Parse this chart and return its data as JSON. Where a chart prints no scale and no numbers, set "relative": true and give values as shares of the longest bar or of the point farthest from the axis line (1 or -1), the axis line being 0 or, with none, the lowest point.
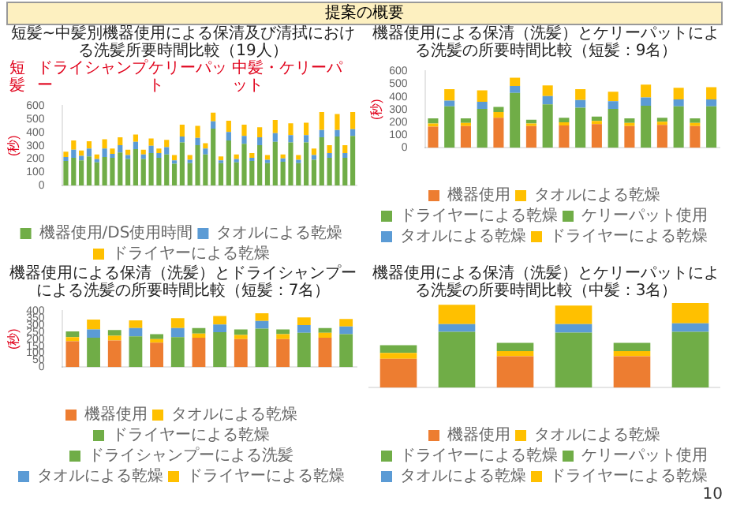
{
  "chart_data": [
    {
      "type": "bar",
      "title": "短髪~中髪別機器使用による保清及び清拭における洗髪所要時間比較（19人）",
      "ylabel": "(秒)",
      "annotations": [
        "提案の概要",
        "短髪",
        "ドライシャンプー",
        "ケリーパット",
        "中髪・ケリーパット"
      ],
      "stacked": true,
      "legend": "bottom",
      "ylim": [
        0,
        600
      ],
      "yticks": [
        0,
        100,
        200,
        300,
        400,
        500,
        600
      ],
      "categories": [
        null,
        null,
        null,
        null,
        null,
        null,
        null,
        null,
        null,
        null,
        null,
        null,
        null,
        null,
        null,
        null,
        null,
        null,
        null,
        null,
        null,
        null,
        null,
        null,
        null,
        null,
        null,
        null,
        null,
        null,
        null,
        null,
        null,
        null,
        null,
        null,
        null,
        null
      ],
      "series": [
        {
          "name": "機器使用/DS使用時間",
          "color": "#70ad47",
          "values": [
            185,
            210,
            190,
            220,
            175,
            215,
            210,
            250,
            200,
            275,
            200,
            245,
            210,
            235,
            165,
            325,
            170,
            305,
            235,
            430,
            170,
            340,
            175,
            315,
            185,
            305,
            170,
            330,
            180,
            325,
            170,
            325,
            195,
            365,
            210,
            370,
            210,
            375
          ]
        },
        {
          "name": "タオルによる乾燥",
          "color": "#5b9bd5",
          "values": [
            30,
            60,
            35,
            60,
            25,
            65,
            30,
            55,
            30,
            55,
            35,
            55,
            35,
            55,
            25,
            45,
            25,
            55,
            45,
            55,
            20,
            65,
            25,
            60,
            25,
            60,
            25,
            65,
            25,
            55,
            25,
            55,
            35,
            55,
            35,
            50,
            35,
            50
          ]
        },
        {
          "name": "ドライヤーによる乾燥",
          "color": "#ffc000",
          "values": [
            40,
            70,
            40,
            55,
            35,
            70,
            40,
            60,
            40,
            55,
            35,
            55,
            35,
            55,
            40,
            90,
            35,
            90,
            40,
            65,
            30,
            85,
            35,
            85,
            35,
            75,
            35,
            100,
            30,
            90,
            35,
            95,
            50,
            135,
            60,
            120,
            60,
            130
          ]
        }
      ]
    },
    {
      "type": "bar",
      "title": "機器使用による保清（洗髪）とケリーパットによる洗髪の所要時間比較（短髪：9名）",
      "ylabel": "(秒)",
      "stacked": true,
      "legend": "bottom",
      "ylim": [
        0,
        600
      ],
      "yticks": [
        0,
        100,
        200,
        300,
        400,
        500,
        600
      ],
      "categories": [
        null,
        null,
        null,
        null,
        null,
        null,
        null,
        null,
        null,
        null,
        null,
        null,
        null,
        null,
        null,
        null,
        null,
        null
      ],
      "series": [
        {
          "name": "機器使用",
          "color": "#ed7d31",
          "values": [
            165,
            null,
            170,
            null,
            235,
            null,
            170,
            null,
            175,
            null,
            185,
            null,
            170,
            null,
            180,
            null,
            170,
            null
          ]
        },
        {
          "name": "タオルによる乾燥",
          "color": "#ffc000",
          "values": [
            25,
            null,
            25,
            null,
            45,
            null,
            20,
            null,
            25,
            null,
            25,
            null,
            25,
            null,
            25,
            null,
            25,
            null
          ]
        },
        {
          "name": "ドライヤーによる乾燥",
          "color": "#70ad47",
          "values": [
            40,
            null,
            35,
            null,
            40,
            null,
            30,
            null,
            35,
            null,
            35,
            null,
            35,
            null,
            30,
            null,
            35,
            null
          ]
        },
        {
          "name": "ケリーパット使用",
          "color": "#70ad47",
          "values": [
            null,
            325,
            null,
            305,
            null,
            430,
            null,
            340,
            null,
            315,
            null,
            305,
            null,
            330,
            null,
            325,
            null,
            325
          ]
        },
        {
          "name": "タオルによる乾燥",
          "color": "#5b9bd5",
          "values": [
            null,
            45,
            null,
            55,
            null,
            55,
            null,
            65,
            null,
            60,
            null,
            60,
            null,
            65,
            null,
            55,
            null,
            55
          ]
        },
        {
          "name": "ドライヤーによる乾燥",
          "color": "#ffc000",
          "values": [
            null,
            90,
            null,
            90,
            null,
            65,
            null,
            85,
            null,
            85,
            null,
            75,
            null,
            100,
            null,
            90,
            null,
            95
          ]
        }
      ]
    },
    {
      "type": "bar",
      "title": "機器使用による保清（洗髪）とドライシャンプーによる洗髪の所要時間比較（短髪：7名）",
      "ylabel": "(秒)",
      "stacked": true,
      "legend": "bottom",
      "ylim": [
        0,
        400
      ],
      "yticks": [
        0,
        50,
        100,
        150,
        200,
        250,
        300,
        350,
        400
      ],
      "categories": [
        null,
        null,
        null,
        null,
        null,
        null,
        null,
        null,
        null,
        null,
        null,
        null,
        null,
        null
      ],
      "series": [
        {
          "name": "機器使用",
          "color": "#ed7d31",
          "values": [
            185,
            null,
            190,
            null,
            175,
            null,
            210,
            null,
            200,
            null,
            200,
            null,
            210,
            null
          ]
        },
        {
          "name": "タオルによる乾燥",
          "color": "#ffc000",
          "values": [
            30,
            null,
            35,
            null,
            25,
            null,
            30,
            null,
            30,
            null,
            35,
            null,
            35,
            null
          ]
        },
        {
          "name": "ドライヤーによる乾燥",
          "color": "#70ad47",
          "values": [
            40,
            null,
            40,
            null,
            35,
            null,
            40,
            null,
            40,
            null,
            35,
            null,
            35,
            null
          ]
        },
        {
          "name": "ドライシャンプーによる洗髪",
          "color": "#70ad47",
          "values": [
            null,
            210,
            null,
            220,
            null,
            215,
            null,
            250,
            null,
            275,
            null,
            245,
            null,
            235
          ]
        },
        {
          "name": "タオルによる乾燥",
          "color": "#5b9bd5",
          "values": [
            null,
            60,
            null,
            60,
            null,
            65,
            null,
            55,
            null,
            55,
            null,
            55,
            null,
            55
          ]
        },
        {
          "name": "ドライヤーによる乾燥",
          "color": "#ffc000",
          "values": [
            null,
            70,
            null,
            55,
            null,
            70,
            null,
            60,
            null,
            55,
            null,
            55,
            null,
            55
          ]
        }
      ]
    },
    {
      "type": "bar",
      "title": "機器使用による保清（洗髪）とケリーパットによる洗髪の所要時間比較（中髪：3名）",
      "annotations": [
        "10"
      ],
      "stacked": true,
      "legend": "bottom",
      "relative": true,
      "categories": [
        null,
        null,
        null,
        null,
        null,
        null
      ],
      "series": [
        {
          "name": "機器使用",
          "color": "#ed7d31",
          "values": [
            0.34,
            null,
            0.37,
            null,
            0.37,
            null
          ]
        },
        {
          "name": "タオルによる乾燥",
          "color": "#ffc000",
          "values": [
            0.07,
            null,
            0.06,
            null,
            0.06,
            null
          ]
        },
        {
          "name": "ドライヤーによる乾燥",
          "color": "#70ad47",
          "values": [
            0.09,
            null,
            0.1,
            null,
            0.1,
            null
          ]
        },
        {
          "name": "ケリーパット使用",
          "color": "#70ad47",
          "values": [
            null,
            0.66,
            null,
            0.65,
            null,
            0.66
          ]
        },
        {
          "name": "タオルによる乾燥",
          "color": "#5b9bd5",
          "values": [
            null,
            0.09,
            null,
            0.1,
            null,
            0.1
          ]
        },
        {
          "name": "ドライヤーによる乾燥",
          "color": "#ffc000",
          "values": [
            null,
            0.23,
            null,
            0.22,
            null,
            0.24
          ]
        }
      ]
    }
  ]
}
